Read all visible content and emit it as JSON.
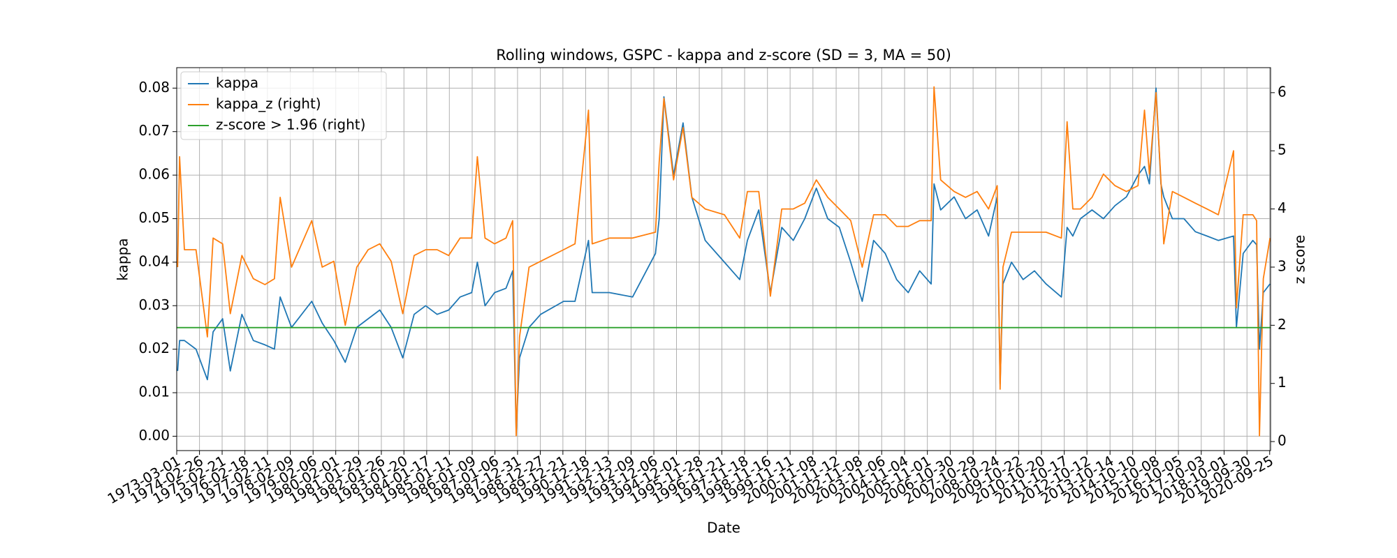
{
  "chart_data": {
    "type": "line",
    "title": "Rolling windows, GSPC - kappa and z-score (SD = 3, MA = 50)",
    "x_label": "Date",
    "y_label": "kappa",
    "y2_label": "z score",
    "grid": true,
    "legend": "upper left",
    "xlim": [
      "1973-03-01",
      "2020-10-09"
    ],
    "xticks": [
      "1973-03-01",
      "1974-02-26",
      "1975-02-21",
      "1976-02-18",
      "1977-02-11",
      "1978-02-09",
      "1979-02-06",
      "1980-02-01",
      "1981-01-29",
      "1982-01-26",
      "1983-01-20",
      "1984-01-17",
      "1985-01-11",
      "1986-01-09",
      "1987-01-06",
      "1987-12-31",
      "1988-12-27",
      "1989-12-21",
      "1990-12-18",
      "1991-12-13",
      "1992-12-09",
      "1993-12-06",
      "1994-12-01",
      "1995-11-28",
      "1996-11-21",
      "1997-11-18",
      "1998-11-16",
      "1999-11-11",
      "2000-11-08",
      "2001-11-12",
      "2002-11-08",
      "2003-11-06",
      "2004-11-04",
      "2005-11-01",
      "2006-10-30",
      "2007-10-29",
      "2008-10-24",
      "2009-10-22",
      "2010-10-20",
      "2011-10-17",
      "2012-10-12",
      "2013-10-14",
      "2014-10-10",
      "2015-10-08",
      "2016-10-05",
      "2017-10-03",
      "2018-10-01",
      "2019-09-30",
      "2020-09-25"
    ],
    "ylim": [
      -0.0033,
      0.0847
    ],
    "yticks": [
      {
        "value": 0,
        "label": "0.00"
      },
      0.01,
      0.02,
      0.03,
      0.04,
      0.05,
      0.06,
      0.07,
      0.08
    ],
    "y2lim": [
      -0.155,
      6.43
    ],
    "y2ticks": [
      0,
      1,
      2,
      3,
      4,
      5,
      6
    ],
    "x": [
      "1973-03-15",
      "1973-04-15",
      "1973-07-01",
      "1974-01-01",
      "1974-07-01",
      "1974-10-01",
      "1975-03-01",
      "1975-07-01",
      "1976-01-01",
      "1976-07-01",
      "1977-01-01",
      "1977-06-01",
      "1977-09-01",
      "1978-03-01",
      "1979-01-15",
      "1979-07-01",
      "1980-01-01",
      "1980-07-01",
      "1981-01-01",
      "1981-07-01",
      "1982-01-01",
      "1982-07-01",
      "1983-01-01",
      "1983-07-01",
      "1984-01-01",
      "1984-07-01",
      "1985-01-01",
      "1985-07-01",
      "1986-01-01",
      "1986-04-01",
      "1986-08-01",
      "1987-01-01",
      "1987-07-01",
      "1987-10-15",
      "1987-12-10",
      "1988-02-01",
      "1988-07-01",
      "1989-01-01",
      "1990-01-01",
      "1990-07-01",
      "1991-02-01",
      "1991-04-01",
      "1992-01-01",
      "1993-01-01",
      "1994-01-01",
      "1994-03-01",
      "1994-05-15",
      "1994-10-15",
      "1995-03-15",
      "1995-08-01",
      "1996-03-01",
      "1997-01-01",
      "1997-09-01",
      "1998-01-01",
      "1998-07-01",
      "1999-01-01",
      "1999-07-01",
      "2000-01-01",
      "2000-07-01",
      "2001-01-01",
      "2001-07-01",
      "2002-01-01",
      "2002-07-01",
      "2003-01-01",
      "2003-07-01",
      "2004-01-01",
      "2004-07-01",
      "2005-01-01",
      "2005-07-01",
      "2006-01-01",
      "2006-02-15",
      "2006-06-01",
      "2007-01-01",
      "2007-07-01",
      "2008-01-01",
      "2008-07-01",
      "2008-11-15",
      "2009-01-01",
      "2009-02-15",
      "2009-07-01",
      "2010-01-01",
      "2010-07-01",
      "2011-01-01",
      "2011-09-01",
      "2011-12-01",
      "2012-03-01",
      "2012-07-01",
      "2013-01-01",
      "2013-07-01",
      "2014-01-01",
      "2014-07-01",
      "2015-01-01",
      "2015-04-15",
      "2015-07-01",
      "2015-10-15",
      "2016-01-01",
      "2016-02-15",
      "2016-07-01",
      "2017-01-01",
      "2017-07-01",
      "2018-01-01",
      "2018-07-01",
      "2019-03-01",
      "2019-04-15",
      "2019-08-01",
      "2020-01-01",
      "2020-03-01",
      "2020-04-15",
      "2020-06-15",
      "2020-09-30"
    ],
    "series": [
      {
        "name": "kappa",
        "color": "#1f77b4",
        "values": [
          0.015,
          0.022,
          0.022,
          0.02,
          0.013,
          0.024,
          0.027,
          0.015,
          0.028,
          0.022,
          0.021,
          0.02,
          0.032,
          0.025,
          0.031,
          0.026,
          0.022,
          0.017,
          0.025,
          0.027,
          0.029,
          0.025,
          0.018,
          0.028,
          0.03,
          0.028,
          0.029,
          0.032,
          0.033,
          0.04,
          0.03,
          0.033,
          0.034,
          0.038,
          0.001,
          0.018,
          0.025,
          0.028,
          0.031,
          0.031,
          0.045,
          0.033,
          0.033,
          0.032,
          0.042,
          0.05,
          0.078,
          0.06,
          0.072,
          0.055,
          0.045,
          0.04,
          0.036,
          0.045,
          0.052,
          0.033,
          0.048,
          0.045,
          0.05,
          0.057,
          0.05,
          0.048,
          0.04,
          0.031,
          0.045,
          0.042,
          0.036,
          0.033,
          0.038,
          0.035,
          0.058,
          0.052,
          0.055,
          0.05,
          0.052,
          0.046,
          0.055,
          0.012,
          0.035,
          0.04,
          0.036,
          0.038,
          0.035,
          0.032,
          0.048,
          0.046,
          0.05,
          0.052,
          0.05,
          0.053,
          0.055,
          0.06,
          0.062,
          0.058,
          0.08,
          0.058,
          0.055,
          0.05,
          0.05,
          0.047,
          0.046,
          0.045,
          0.046,
          0.025,
          0.042,
          0.045,
          0.044,
          0.02,
          0.033,
          0.035
        ]
      },
      {
        "name": "kappa_z (right)",
        "color": "#ff7f0e",
        "axis": "y2",
        "values": [
          3.0,
          4.9,
          3.3,
          3.3,
          1.8,
          3.5,
          3.4,
          2.2,
          3.2,
          2.8,
          2.7,
          2.8,
          4.2,
          3.0,
          3.8,
          3.0,
          3.1,
          2.0,
          3.0,
          3.3,
          3.4,
          3.1,
          2.2,
          3.2,
          3.3,
          3.3,
          3.2,
          3.5,
          3.5,
          4.9,
          3.5,
          3.4,
          3.5,
          3.8,
          0.1,
          1.8,
          3.0,
          3.1,
          3.3,
          3.4,
          5.7,
          3.4,
          3.5,
          3.5,
          3.6,
          4.8,
          5.9,
          4.5,
          5.4,
          4.2,
          4.0,
          3.9,
          3.5,
          4.3,
          4.3,
          2.5,
          4.0,
          4.0,
          4.1,
          4.5,
          4.2,
          4.0,
          3.8,
          3.0,
          3.9,
          3.9,
          3.7,
          3.7,
          3.8,
          3.8,
          6.1,
          4.5,
          4.3,
          4.2,
          4.3,
          4.0,
          4.4,
          0.9,
          3.0,
          3.6,
          3.6,
          3.6,
          3.6,
          3.5,
          5.5,
          4.0,
          4.0,
          4.2,
          4.6,
          4.4,
          4.3,
          4.4,
          5.7,
          4.6,
          6.0,
          4.5,
          3.4,
          4.3,
          4.2,
          4.1,
          4.0,
          3.9,
          5.0,
          2.3,
          3.9,
          3.9,
          3.8,
          0.1,
          2.8,
          3.5
        ]
      },
      {
        "name": "z-score > 1.96 (right)",
        "color": "#2ca02c",
        "axis": "y2",
        "x": [
          "1973-03-01",
          "2020-10-09"
        ],
        "values": [
          1.96,
          1.96
        ]
      }
    ]
  }
}
